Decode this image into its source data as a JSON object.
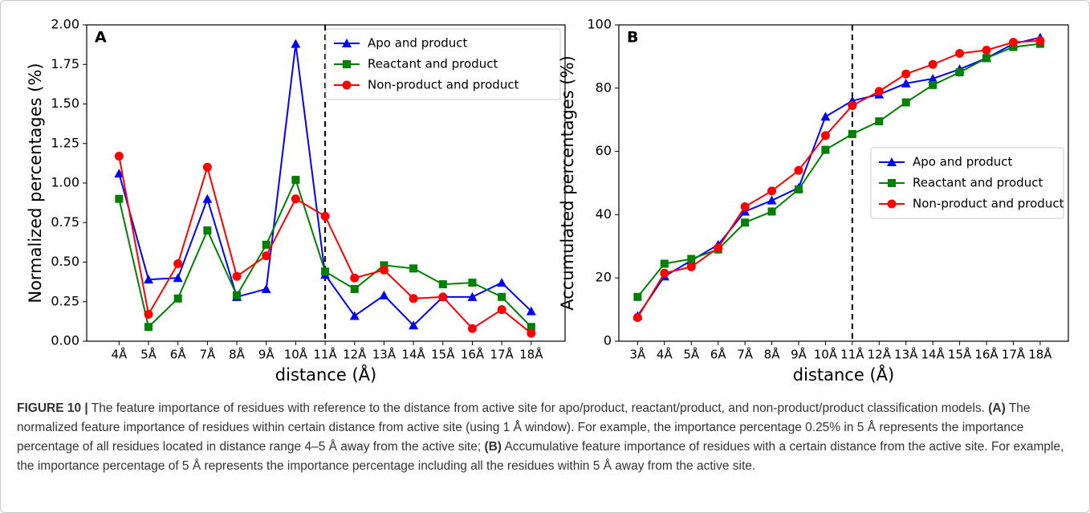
{
  "chart_data": [
    {
      "type": "line",
      "panel_label": "A",
      "x_label": "distance (Å)",
      "y_label": "Normalized percentages (%)",
      "categories": [
        "4Å",
        "5Å",
        "6Å",
        "7Å",
        "8Å",
        "9Å",
        "10Å",
        "11Å",
        "12Å",
        "13Å",
        "14Å",
        "15Å",
        "16Å",
        "17Å",
        "18Å"
      ],
      "ylim": [
        0,
        2.0
      ],
      "yticks": [
        {
          "value": 0,
          "label": "0.00"
        },
        0.25,
        {
          "value": 0.5,
          "label": "0.50"
        },
        0.75,
        {
          "value": 1.0,
          "label": "1.00"
        },
        1.25,
        {
          "value": 1.5,
          "label": "1.50"
        },
        1.75,
        {
          "value": 2.0,
          "label": "2.00"
        }
      ],
      "vline": "11Å",
      "legend": "upper right",
      "series": [
        {
          "name": "Apo and product",
          "color": "#0000ff",
          "marker": "triangle",
          "values": [
            1.06,
            0.39,
            0.4,
            0.9,
            0.28,
            0.33,
            1.88,
            0.42,
            0.16,
            0.29,
            0.1,
            0.28,
            0.28,
            0.37,
            0.19
          ]
        },
        {
          "name": "Reactant and product",
          "color": "#008000",
          "marker": "square",
          "values": [
            0.9,
            0.09,
            0.27,
            0.7,
            0.29,
            0.61,
            1.02,
            0.44,
            0.33,
            0.48,
            0.46,
            0.36,
            0.37,
            0.28,
            0.09
          ]
        },
        {
          "name": "Non-product and product",
          "color": "#ff0000",
          "marker": "circle",
          "values": [
            1.17,
            0.17,
            0.49,
            1.1,
            0.41,
            0.54,
            0.9,
            0.79,
            0.4,
            0.45,
            0.27,
            0.28,
            0.08,
            0.2,
            0.05
          ]
        }
      ]
    },
    {
      "type": "line",
      "panel_label": "B",
      "x_label": "distance (Å)",
      "y_label": "Accumulated percentages (%)",
      "categories": [
        "3Å",
        "4Å",
        "5Å",
        "6Å",
        "7Å",
        "8Å",
        "9Å",
        "10Å",
        "11Å",
        "12Å",
        "13Å",
        "14Å",
        "15Å",
        "16Å",
        "17Å",
        "18Å"
      ],
      "ylim": [
        0,
        100
      ],
      "yticks": [
        0,
        20,
        40,
        60,
        80,
        100
      ],
      "vline": "11Å",
      "legend": "center right",
      "series": [
        {
          "name": "Apo and product",
          "color": "#0000ff",
          "marker": "triangle",
          "values": [
            8,
            20.5,
            25.5,
            30.5,
            41,
            44.5,
            48.5,
            71,
            76,
            78,
            81.5,
            83,
            86,
            89.5,
            94,
            96
          ]
        },
        {
          "name": "Reactant and product",
          "color": "#008000",
          "marker": "square",
          "values": [
            14,
            24.5,
            26,
            29,
            37.5,
            41,
            48,
            60.5,
            65.5,
            69.5,
            75.5,
            81,
            85,
            89.5,
            93,
            94
          ]
        },
        {
          "name": "Non-product and product",
          "color": "#ff0000",
          "marker": "circle",
          "values": [
            7.5,
            21.5,
            23.5,
            29.5,
            42.5,
            47.5,
            54,
            65,
            74.5,
            79,
            84.5,
            87.5,
            91,
            92,
            94.5,
            95
          ]
        }
      ]
    }
  ],
  "caption": {
    "label": "FIGURE 10 |",
    "text_1": "The feature importance of residues with reference to the distance from active site for apo/product, reactant/product, and non-product/product classification models.",
    "ref_a": "(A)",
    "text_2": "The normalized feature importance of residues within certain distance from active site (using 1 Å window). For example, the importance percentage 0.25% in 5 Å represents the importance percentage of all residues located in distance range 4–5 Å away from the active site;",
    "ref_b": "(B)",
    "text_3": "Accumulative feature importance of residues with a certain distance from the active site. For example, the importance percentage of 5 Å represents the importance percentage including all the residues within 5 Å away from the active site."
  }
}
